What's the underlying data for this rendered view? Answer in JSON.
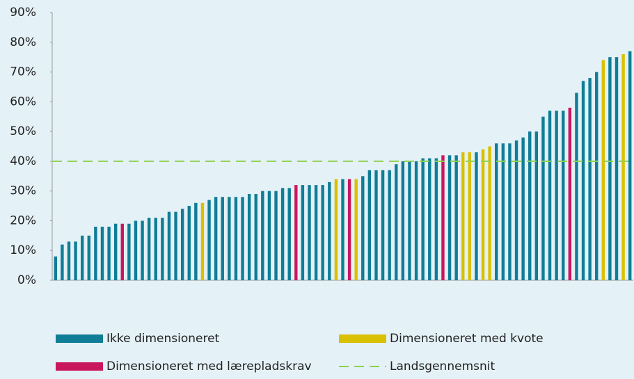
{
  "chart_data": {
    "type": "bar",
    "values": [
      8,
      12,
      13,
      13,
      15,
      15,
      18,
      18,
      18,
      19,
      19,
      19,
      20,
      20,
      21,
      21,
      21,
      23,
      23,
      24,
      25,
      26,
      26,
      27,
      28,
      28,
      28,
      28,
      28,
      29,
      29,
      30,
      30,
      30,
      31,
      31,
      32,
      32,
      32,
      32,
      32,
      33,
      34,
      34,
      34,
      34,
      35,
      37,
      37,
      37,
      37,
      39,
      40,
      40,
      40,
      41,
      41,
      41,
      42,
      42,
      42,
      43,
      43,
      43,
      44,
      45,
      46,
      46,
      46,
      47,
      48,
      50,
      50,
      55,
      57,
      57,
      57,
      58,
      63,
      67,
      68,
      70,
      74,
      75,
      75,
      76,
      77
    ],
    "colors": [
      "#0f7d96",
      "#0f7d96",
      "#0f7d96",
      "#0f7d96",
      "#0f7d96",
      "#0f7d96",
      "#0f7d96",
      "#0f7d96",
      "#0f7d96",
      "#0f7d96",
      "#c8175d",
      "#0f7d96",
      "#0f7d96",
      "#0f7d96",
      "#0f7d96",
      "#0f7d96",
      "#0f7d96",
      "#0f7d96",
      "#0f7d96",
      "#0f7d96",
      "#0f7d96",
      "#0f7d96",
      "#d9c000",
      "#0f7d96",
      "#0f7d96",
      "#0f7d96",
      "#0f7d96",
      "#0f7d96",
      "#0f7d96",
      "#0f7d96",
      "#0f7d96",
      "#0f7d96",
      "#0f7d96",
      "#0f7d96",
      "#0f7d96",
      "#0f7d96",
      "#c8175d",
      "#0f7d96",
      "#0f7d96",
      "#0f7d96",
      "#0f7d96",
      "#0f7d96",
      "#d9c000",
      "#0f7d96",
      "#c8175d",
      "#d9c000",
      "#0f7d96",
      "#0f7d96",
      "#0f7d96",
      "#0f7d96",
      "#0f7d96",
      "#0f7d96",
      "#0f7d96",
      "#0f7d96",
      "#0f7d96",
      "#0f7d96",
      "#0f7d96",
      "#0f7d96",
      "#c8175d",
      "#0f7d96",
      "#0f7d96",
      "#d9c000",
      "#d9c000",
      "#0f7d96",
      "#d9c000",
      "#d9c000",
      "#0f7d96",
      "#0f7d96",
      "#0f7d96",
      "#0f7d96",
      "#0f7d96",
      "#0f7d96",
      "#0f7d96",
      "#0f7d96",
      "#0f7d96",
      "#0f7d96",
      "#0f7d96",
      "#c8175d",
      "#0f7d96",
      "#0f7d96",
      "#0f7d96",
      "#0f7d96",
      "#d9c000",
      "#0f7d96",
      "#0f7d96",
      "#d9c000",
      "#0f7d96"
    ],
    "legend": [
      {
        "name": "Ikke dimensioneret",
        "color": "#0f7d96"
      },
      {
        "name": "Dimensioneret med kvote",
        "color": "#d9c000"
      },
      {
        "name": "Dimensioneret med lærepladskrav",
        "color": "#c8175d"
      }
    ],
    "reference_line": {
      "name": "Landsgennemsnit",
      "value": 40,
      "color": "#8fd14f"
    },
    "ylim": [
      0,
      90
    ],
    "yticks": [
      {
        "value": 0,
        "label": "0%"
      },
      {
        "value": 10,
        "label": "10%"
      },
      {
        "value": 20,
        "label": "20%"
      },
      {
        "value": 30,
        "label": "30%"
      },
      {
        "value": 40,
        "label": "40%"
      },
      {
        "value": 50,
        "label": "50%"
      },
      {
        "value": 60,
        "label": "60%"
      },
      {
        "value": 70,
        "label": "70%"
      },
      {
        "value": 80,
        "label": "80%"
      },
      {
        "value": 90,
        "label": "90%"
      }
    ]
  }
}
